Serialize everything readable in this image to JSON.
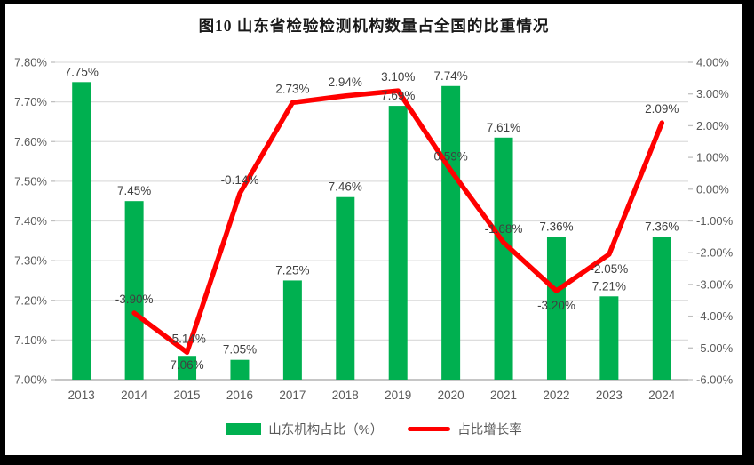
{
  "chart_data": {
    "type": "combo-bar-line",
    "title": "图10  山东省检验检测机构数量占全国的比重情况",
    "categories": [
      "2013",
      "2014",
      "2015",
      "2016",
      "2017",
      "2018",
      "2019",
      "2020",
      "2021",
      "2022",
      "2023",
      "2024"
    ],
    "series": [
      {
        "name": "山东机构占比（%）",
        "type": "bar",
        "axis": "left",
        "color": "#00B050",
        "values": [
          7.75,
          7.45,
          7.06,
          7.05,
          7.25,
          7.46,
          7.69,
          7.74,
          7.61,
          7.36,
          7.21,
          7.36
        ],
        "labels": [
          "7.75%",
          "7.45%",
          "7.06%",
          "7.05%",
          "7.25%",
          "7.46%",
          "7.69%",
          "7.74%",
          "7.61%",
          "7.36%",
          "7.21%",
          "7.36%"
        ],
        "label_pos": [
          "above",
          "above",
          "inside",
          "above",
          "above",
          "above",
          "above",
          "above",
          "above",
          "above",
          "above",
          "above"
        ]
      },
      {
        "name": "占比增长率",
        "type": "line",
        "axis": "right",
        "color": "#FF0000",
        "values": [
          null,
          -3.9,
          -5.14,
          -0.14,
          2.73,
          2.94,
          3.1,
          0.59,
          -1.68,
          -3.2,
          -2.05,
          2.09
        ],
        "labels": [
          null,
          "-3.90%",
          "-5.14%",
          "-0.14%",
          "2.73%",
          "2.94%",
          "3.10%",
          "0.59%",
          "-1.68%",
          "-3.20%",
          "-2.05%",
          "2.09%"
        ],
        "label_pos": [
          null,
          "above",
          "above",
          "above",
          "above",
          "above",
          "above",
          "above",
          "above",
          "below",
          "below",
          "above"
        ]
      }
    ],
    "axes": {
      "left": {
        "min": 7.0,
        "max": 7.8,
        "ticks": [
          "7.80%",
          "7.70%",
          "7.60%",
          "7.50%",
          "7.40%",
          "7.30%",
          "7.20%",
          "7.10%",
          "7.00%"
        ]
      },
      "right": {
        "min": -6.0,
        "max": 4.0,
        "ticks": [
          "4.00%",
          "3.00%",
          "2.00%",
          "1.00%",
          "0.00%",
          "-1.00%",
          "-2.00%",
          "-3.00%",
          "-4.00%",
          "-5.00%",
          "-6.00%"
        ]
      }
    },
    "grid": true,
    "legend_position": "bottom",
    "colors": {
      "grid": "#DDDDDD",
      "axis_line": "#C6C6C6",
      "tick_mark": "#BFBFBF",
      "data_label": "#404040",
      "tick_label": "#595959"
    }
  }
}
